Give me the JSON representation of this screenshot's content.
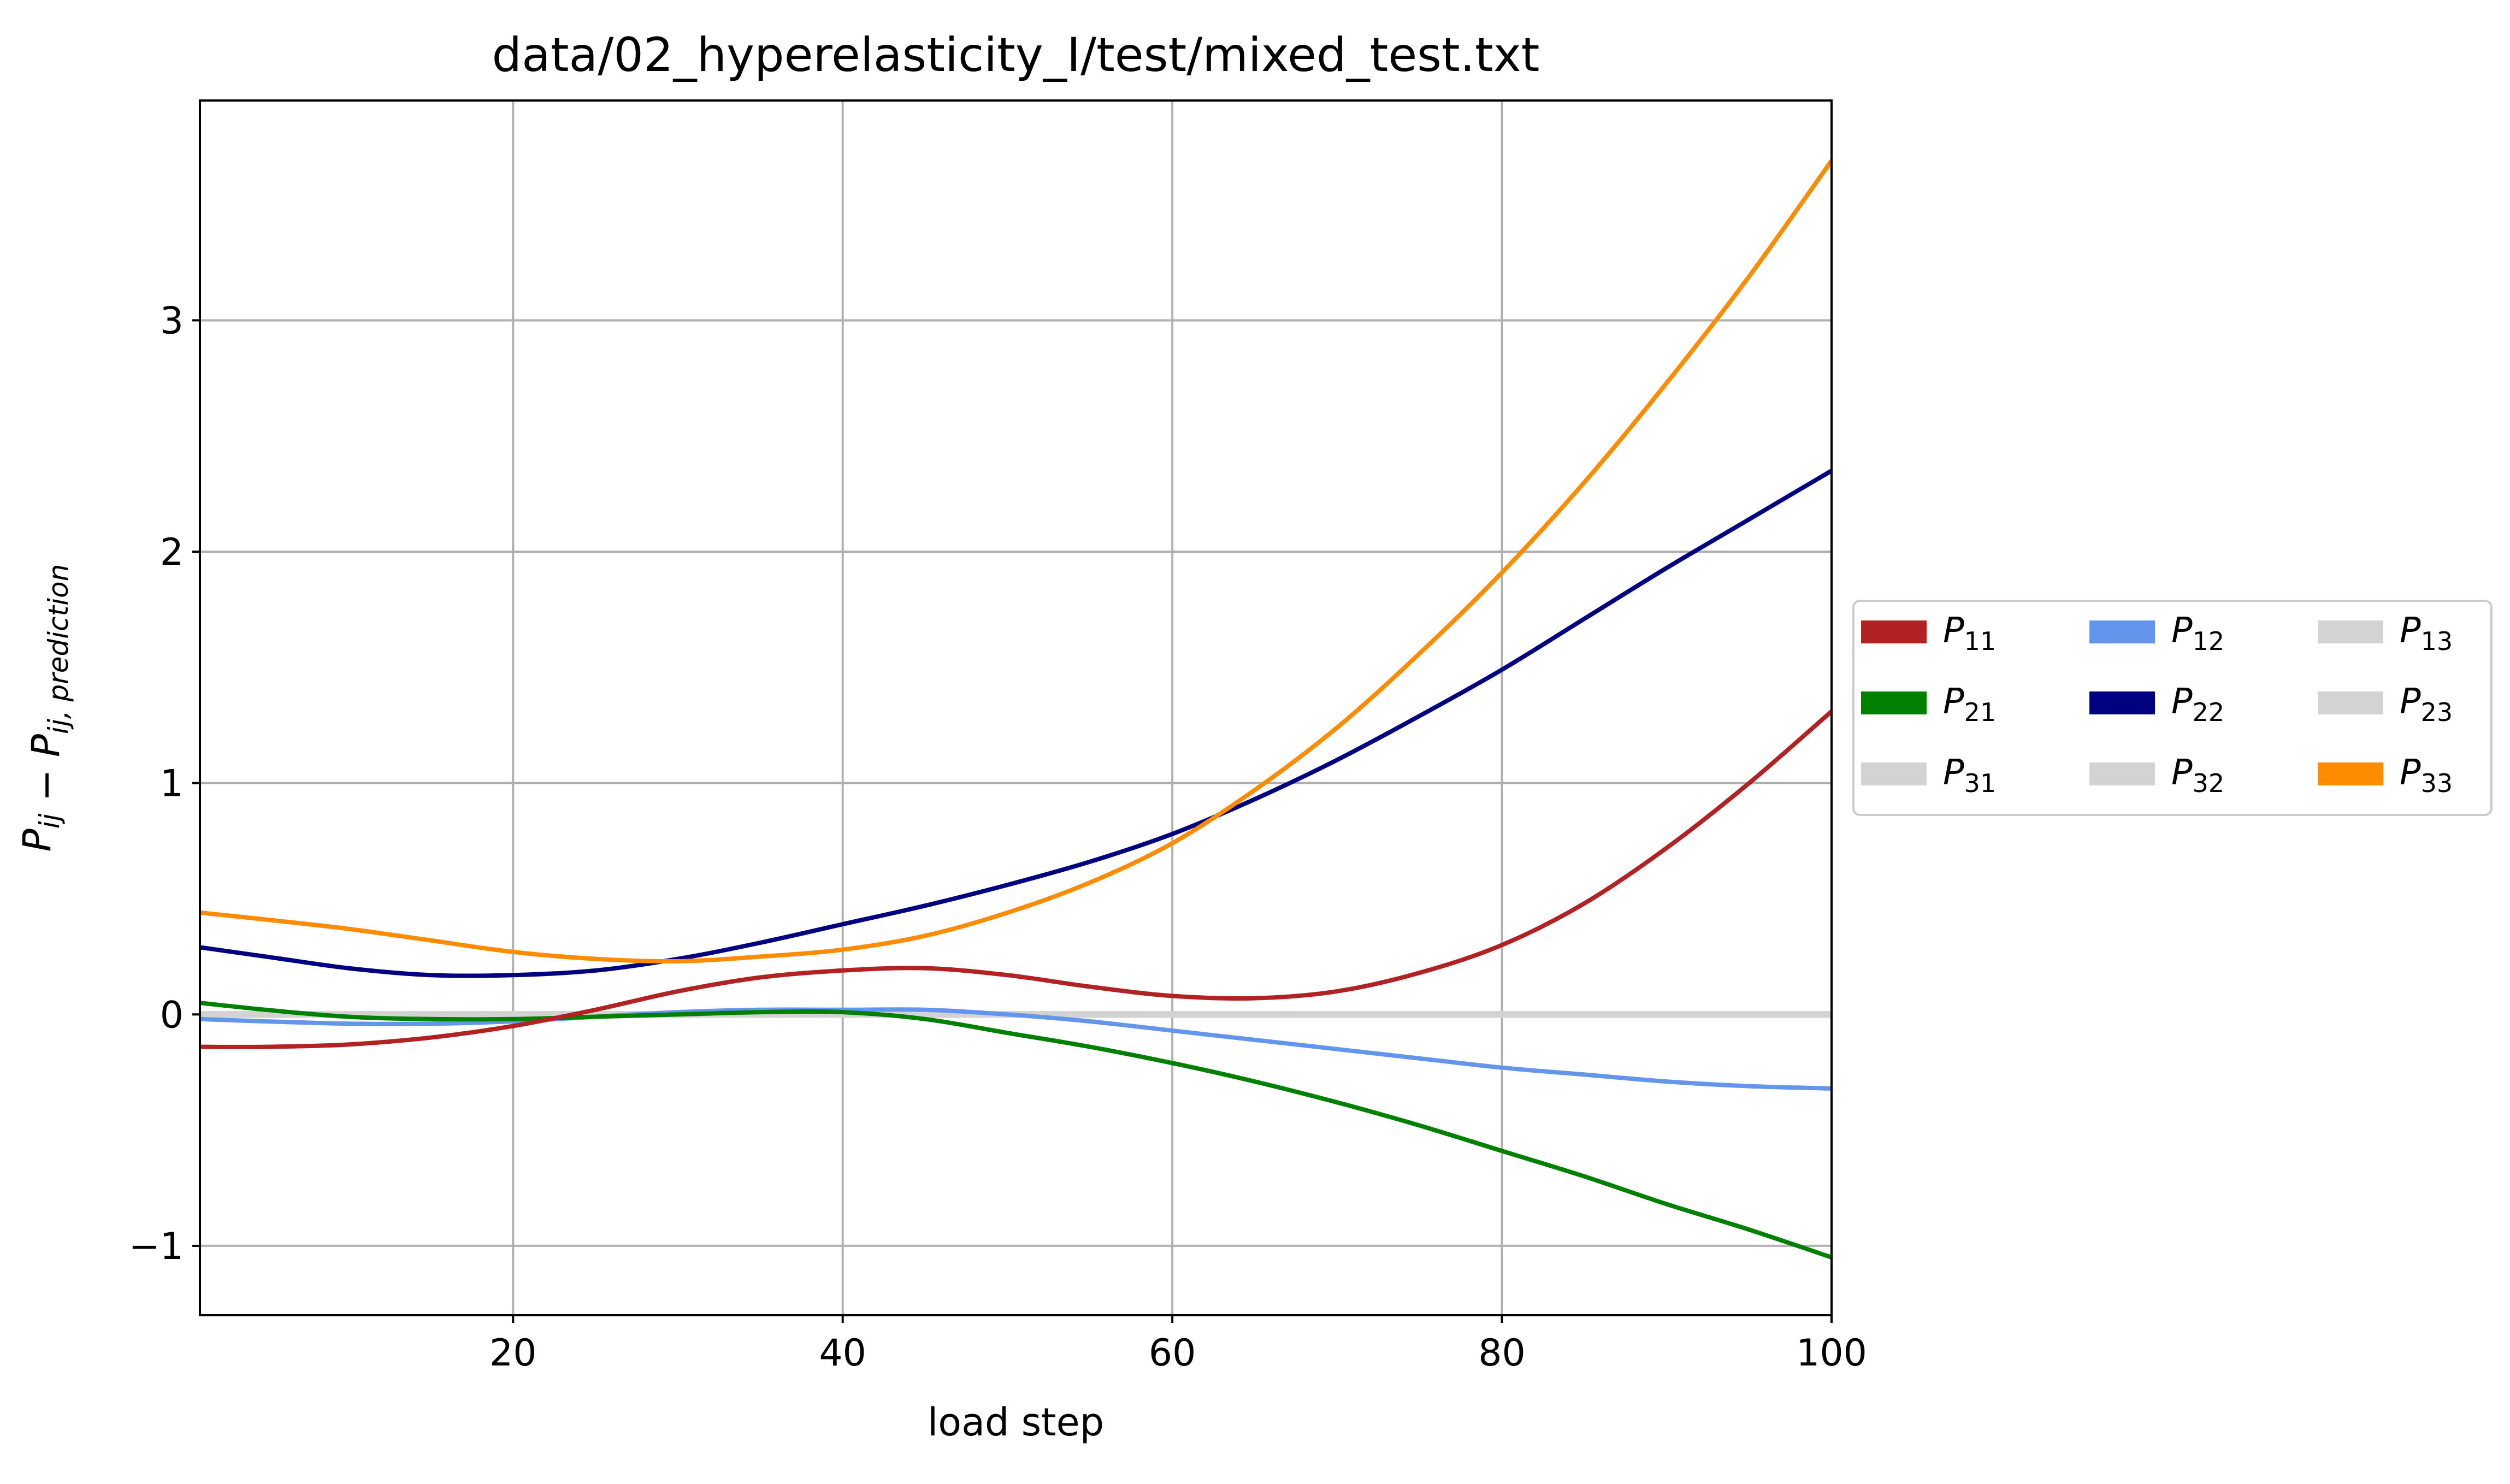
{
  "chart_data": {
    "type": "line",
    "title": "data/02_hyperelasticity_I/test/mixed_test.txt",
    "xlabel": "load step",
    "ylabel": "P_ij − P_ij, prediction",
    "xlim": [
      1,
      100
    ],
    "ylim": [
      -1.3,
      3.95
    ],
    "xticks": [
      20,
      40,
      60,
      80,
      100
    ],
    "yticks": [
      -1,
      0,
      1,
      2,
      3
    ],
    "xtick_labels": [
      "20",
      "40",
      "60",
      "80",
      "100"
    ],
    "ytick_labels": [
      "−1",
      "0",
      "1",
      "2",
      "3"
    ],
    "grid": true,
    "legend": {
      "placement": "outside-right",
      "columns": 3
    },
    "x": [
      1,
      5,
      10,
      15,
      20,
      25,
      30,
      35,
      40,
      45,
      50,
      55,
      60,
      65,
      70,
      75,
      80,
      85,
      90,
      95,
      100
    ],
    "series": [
      {
        "name": "P11",
        "sym": "P",
        "sub": "11",
        "color": "#b22222",
        "values": [
          -0.14,
          -0.14,
          -0.13,
          -0.1,
          -0.05,
          0.02,
          0.1,
          0.16,
          0.19,
          0.2,
          0.17,
          0.12,
          0.08,
          0.07,
          0.1,
          0.18,
          0.3,
          0.48,
          0.72,
          1.0,
          1.31
        ]
      },
      {
        "name": "P12",
        "sym": "P",
        "sub": "12",
        "color": "#6495ed",
        "values": [
          -0.02,
          -0.03,
          -0.04,
          -0.04,
          -0.03,
          -0.01,
          0.01,
          0.02,
          0.02,
          0.02,
          0.0,
          -0.03,
          -0.07,
          -0.11,
          -0.15,
          -0.19,
          -0.23,
          -0.26,
          -0.29,
          -0.31,
          -0.32
        ]
      },
      {
        "name": "P13",
        "sym": "P",
        "sub": "13",
        "color": "#d3d3d3",
        "values": [
          0,
          0,
          0,
          0,
          0,
          0,
          0,
          0,
          0,
          0,
          0,
          0,
          0,
          0,
          0,
          0,
          0,
          0,
          0,
          0,
          0
        ]
      },
      {
        "name": "P21",
        "sym": "P",
        "sub": "21",
        "color": "#008000",
        "values": [
          0.05,
          0.02,
          -0.01,
          -0.02,
          -0.02,
          -0.01,
          0.0,
          0.01,
          0.01,
          -0.02,
          -0.08,
          -0.14,
          -0.21,
          -0.29,
          -0.38,
          -0.48,
          -0.59,
          -0.7,
          -0.82,
          -0.93,
          -1.05
        ]
      },
      {
        "name": "P22",
        "sym": "P",
        "sub": "22",
        "color": "#000080",
        "values": [
          0.29,
          0.25,
          0.2,
          0.17,
          0.17,
          0.19,
          0.24,
          0.31,
          0.39,
          0.47,
          0.56,
          0.66,
          0.78,
          0.93,
          1.1,
          1.29,
          1.49,
          1.71,
          1.93,
          2.14,
          2.35
        ]
      },
      {
        "name": "P23",
        "sym": "P",
        "sub": "23",
        "color": "#d3d3d3",
        "values": [
          0,
          0,
          0,
          0,
          0,
          0,
          0,
          0,
          0,
          0,
          0,
          0,
          0,
          0,
          0,
          0,
          0,
          0,
          0,
          0,
          0
        ]
      },
      {
        "name": "P31",
        "sym": "P",
        "sub": "31",
        "color": "#d3d3d3",
        "values": [
          0,
          0,
          0,
          0,
          0,
          0,
          0,
          0,
          0,
          0,
          0,
          0,
          0,
          0,
          0,
          0,
          0,
          0,
          0,
          0,
          0
        ]
      },
      {
        "name": "P32",
        "sym": "P",
        "sub": "32",
        "color": "#d3d3d3",
        "values": [
          0,
          0,
          0,
          0,
          0,
          0,
          0,
          0,
          0,
          0,
          0,
          0,
          0,
          0,
          0,
          0,
          0,
          0,
          0,
          0,
          0
        ]
      },
      {
        "name": "P33",
        "sym": "P",
        "sub": "33",
        "color": "#ff8c00",
        "values": [
          0.44,
          0.41,
          0.37,
          0.32,
          0.27,
          0.24,
          0.23,
          0.25,
          0.28,
          0.34,
          0.44,
          0.57,
          0.74,
          0.97,
          1.24,
          1.56,
          1.91,
          2.3,
          2.73,
          3.19,
          3.69
        ]
      }
    ],
    "legend_order": [
      "P11",
      "P21",
      "P31",
      "P12",
      "P22",
      "P32",
      "P13",
      "P23",
      "P33"
    ]
  }
}
